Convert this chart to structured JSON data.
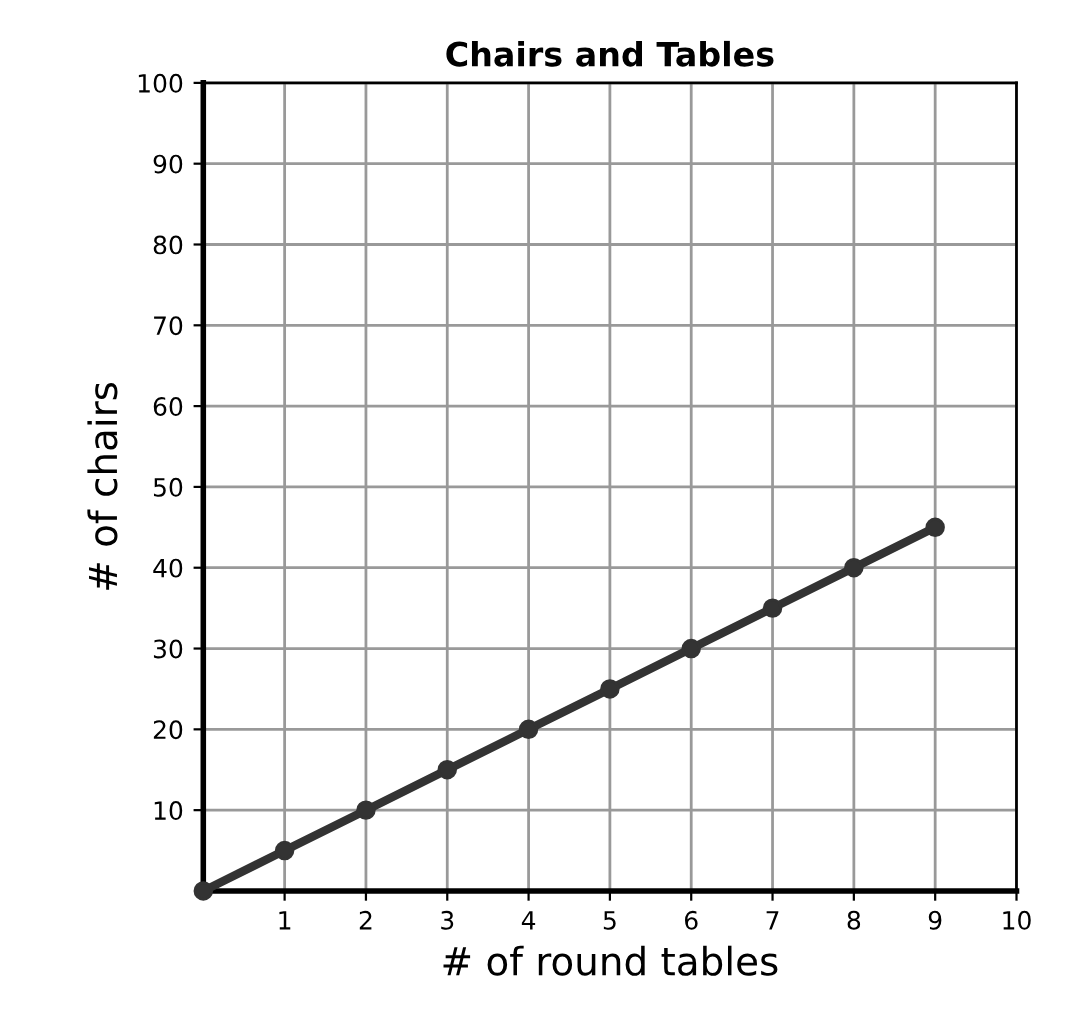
{
  "chart_data": {
    "type": "line",
    "title": "Chairs and Tables",
    "xlabel": "# of round tables",
    "ylabel": "# of chairs",
    "x": [
      0,
      1,
      2,
      3,
      4,
      5,
      6,
      7,
      8,
      9
    ],
    "series": [
      {
        "color": "#333333",
        "values": [
          0,
          5,
          10,
          15,
          20,
          25,
          30,
          35,
          40,
          45
        ]
      }
    ],
    "xlim": [
      0,
      10
    ],
    "ylim": [
      0,
      100
    ],
    "xticks": [
      1,
      2,
      3,
      4,
      5,
      6,
      7,
      8,
      9,
      10
    ],
    "yticks": [
      10,
      20,
      30,
      40,
      50,
      60,
      70,
      80,
      90,
      100
    ],
    "grid": true,
    "marker": "circle",
    "line_style": "solid"
  }
}
